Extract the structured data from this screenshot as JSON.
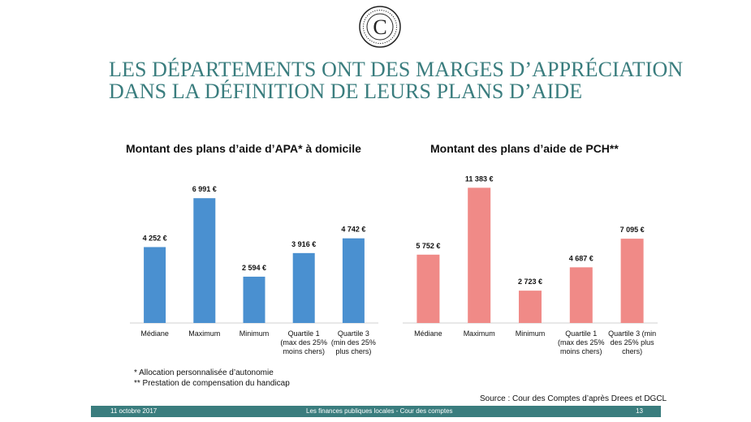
{
  "title_lines": [
    "LES DÉPARTEMENTS ONT DES MARGES D’APPRÉCIATION",
    "DANS LA DÉFINITION DE LEURS PLANS D’AIDE"
  ],
  "logo": {
    "letter": "C",
    "icon": "cour-des-comptes-seal-icon"
  },
  "chart_data": [
    {
      "type": "bar",
      "title": "Montant des plans d’aide d’APA* à domicile",
      "categories": [
        [
          "Médiane"
        ],
        [
          "Maximum"
        ],
        [
          "Minimum"
        ],
        [
          "Quartile 1",
          "(max des 25%",
          "moins chers)"
        ],
        [
          "Quartile 3",
          "(min des 25%",
          "plus chers)"
        ]
      ],
      "values": [
        4252,
        6991,
        2594,
        3916,
        4742
      ],
      "value_labels": [
        "4 252 €",
        "6 991 €",
        "2 594 €",
        "3 916 €",
        "4 742 €"
      ],
      "color": "#4a90d0",
      "ylim": [
        0,
        8000
      ],
      "grid": false,
      "xlabel": "",
      "ylabel": ""
    },
    {
      "type": "bar",
      "title": "Montant des plans d’aide de PCH**",
      "categories": [
        [
          "Médiane"
        ],
        [
          "Maximum"
        ],
        [
          "Minimum"
        ],
        [
          "Quartile 1",
          "(max des 25%",
          "moins chers)"
        ],
        [
          "Quartile 3 (min",
          "des 25% plus",
          "chers)"
        ]
      ],
      "values": [
        5752,
        11383,
        2723,
        4687,
        7095
      ],
      "value_labels": [
        "5 752 €",
        "11 383 €",
        "2 723 €",
        "4 687 €",
        "7 095 €"
      ],
      "color": "#f08a87",
      "ylim": [
        0,
        12500
      ],
      "grid": false,
      "xlabel": "",
      "ylabel": ""
    }
  ],
  "footnotes": [
    "* Allocation personnalisée d’autonomie",
    "** Prestation de compensation du handicap"
  ],
  "source": "Source : Cour des Comptes d’après Drees et DGCL",
  "footer": {
    "date": "11 octobre 2017",
    "center": "Les finances publiques locales - Cour des comptes",
    "page": "13"
  },
  "colors": {
    "accent": "#3a7d7e"
  }
}
